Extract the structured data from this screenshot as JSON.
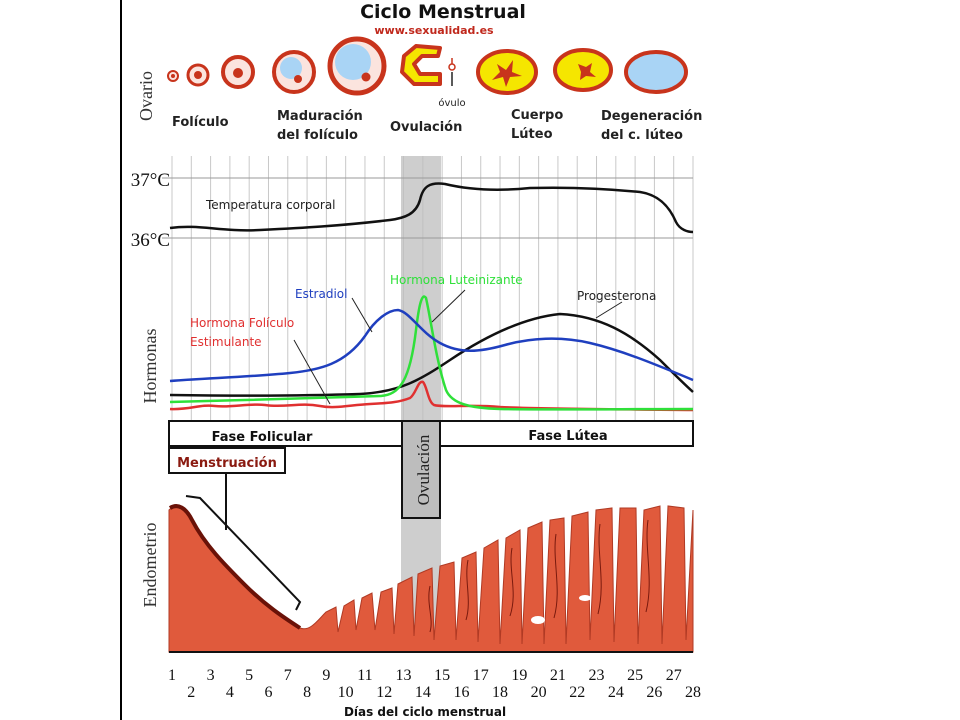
{
  "title": "Ciclo Menstrual",
  "source": "www.sexualidad.es",
  "ovary": {
    "section_label": "Ovario",
    "stages": [
      "Folículo",
      "Maduración",
      "del folículo",
      "Ovulación",
      "Cuerpo",
      "Lúteo",
      "Degeneración",
      "del c. lúteo"
    ],
    "ovum_label": "óvulo"
  },
  "temperature": {
    "ticks": [
      "37°C",
      "36°C"
    ],
    "label": "Temperatura corporal"
  },
  "hormones": {
    "section_label": "Hormonas",
    "estradiol": "Estradiol",
    "lh": "Hormona Luteinizante",
    "progesterone": "Progesterona",
    "fsh_line1": "Hormona Folículo",
    "fsh_line2": "Estimulante"
  },
  "phases": {
    "follicular": "Fase Folicular",
    "luteal": "Fase Lútea",
    "ovulation": "Ovulación",
    "menstruation": "Menstruación"
  },
  "endometrium": {
    "section_label": "Endometrio"
  },
  "x_axis": {
    "label": "Días del ciclo menstrual",
    "days": [
      1,
      2,
      3,
      4,
      5,
      6,
      7,
      8,
      9,
      10,
      11,
      12,
      13,
      14,
      15,
      16,
      17,
      18,
      19,
      20,
      21,
      22,
      23,
      24,
      25,
      26,
      27,
      28
    ]
  },
  "colors": {
    "estradiol": "#1f3fbf",
    "lh": "#2fe03a",
    "fsh": "#e03030",
    "progesterone": "#111111",
    "endometrium": "#e05a3c",
    "ovary_red": "#c8341c",
    "ovary_blue": "#a9d4f5",
    "ovary_yellow": "#f5e600"
  }
}
